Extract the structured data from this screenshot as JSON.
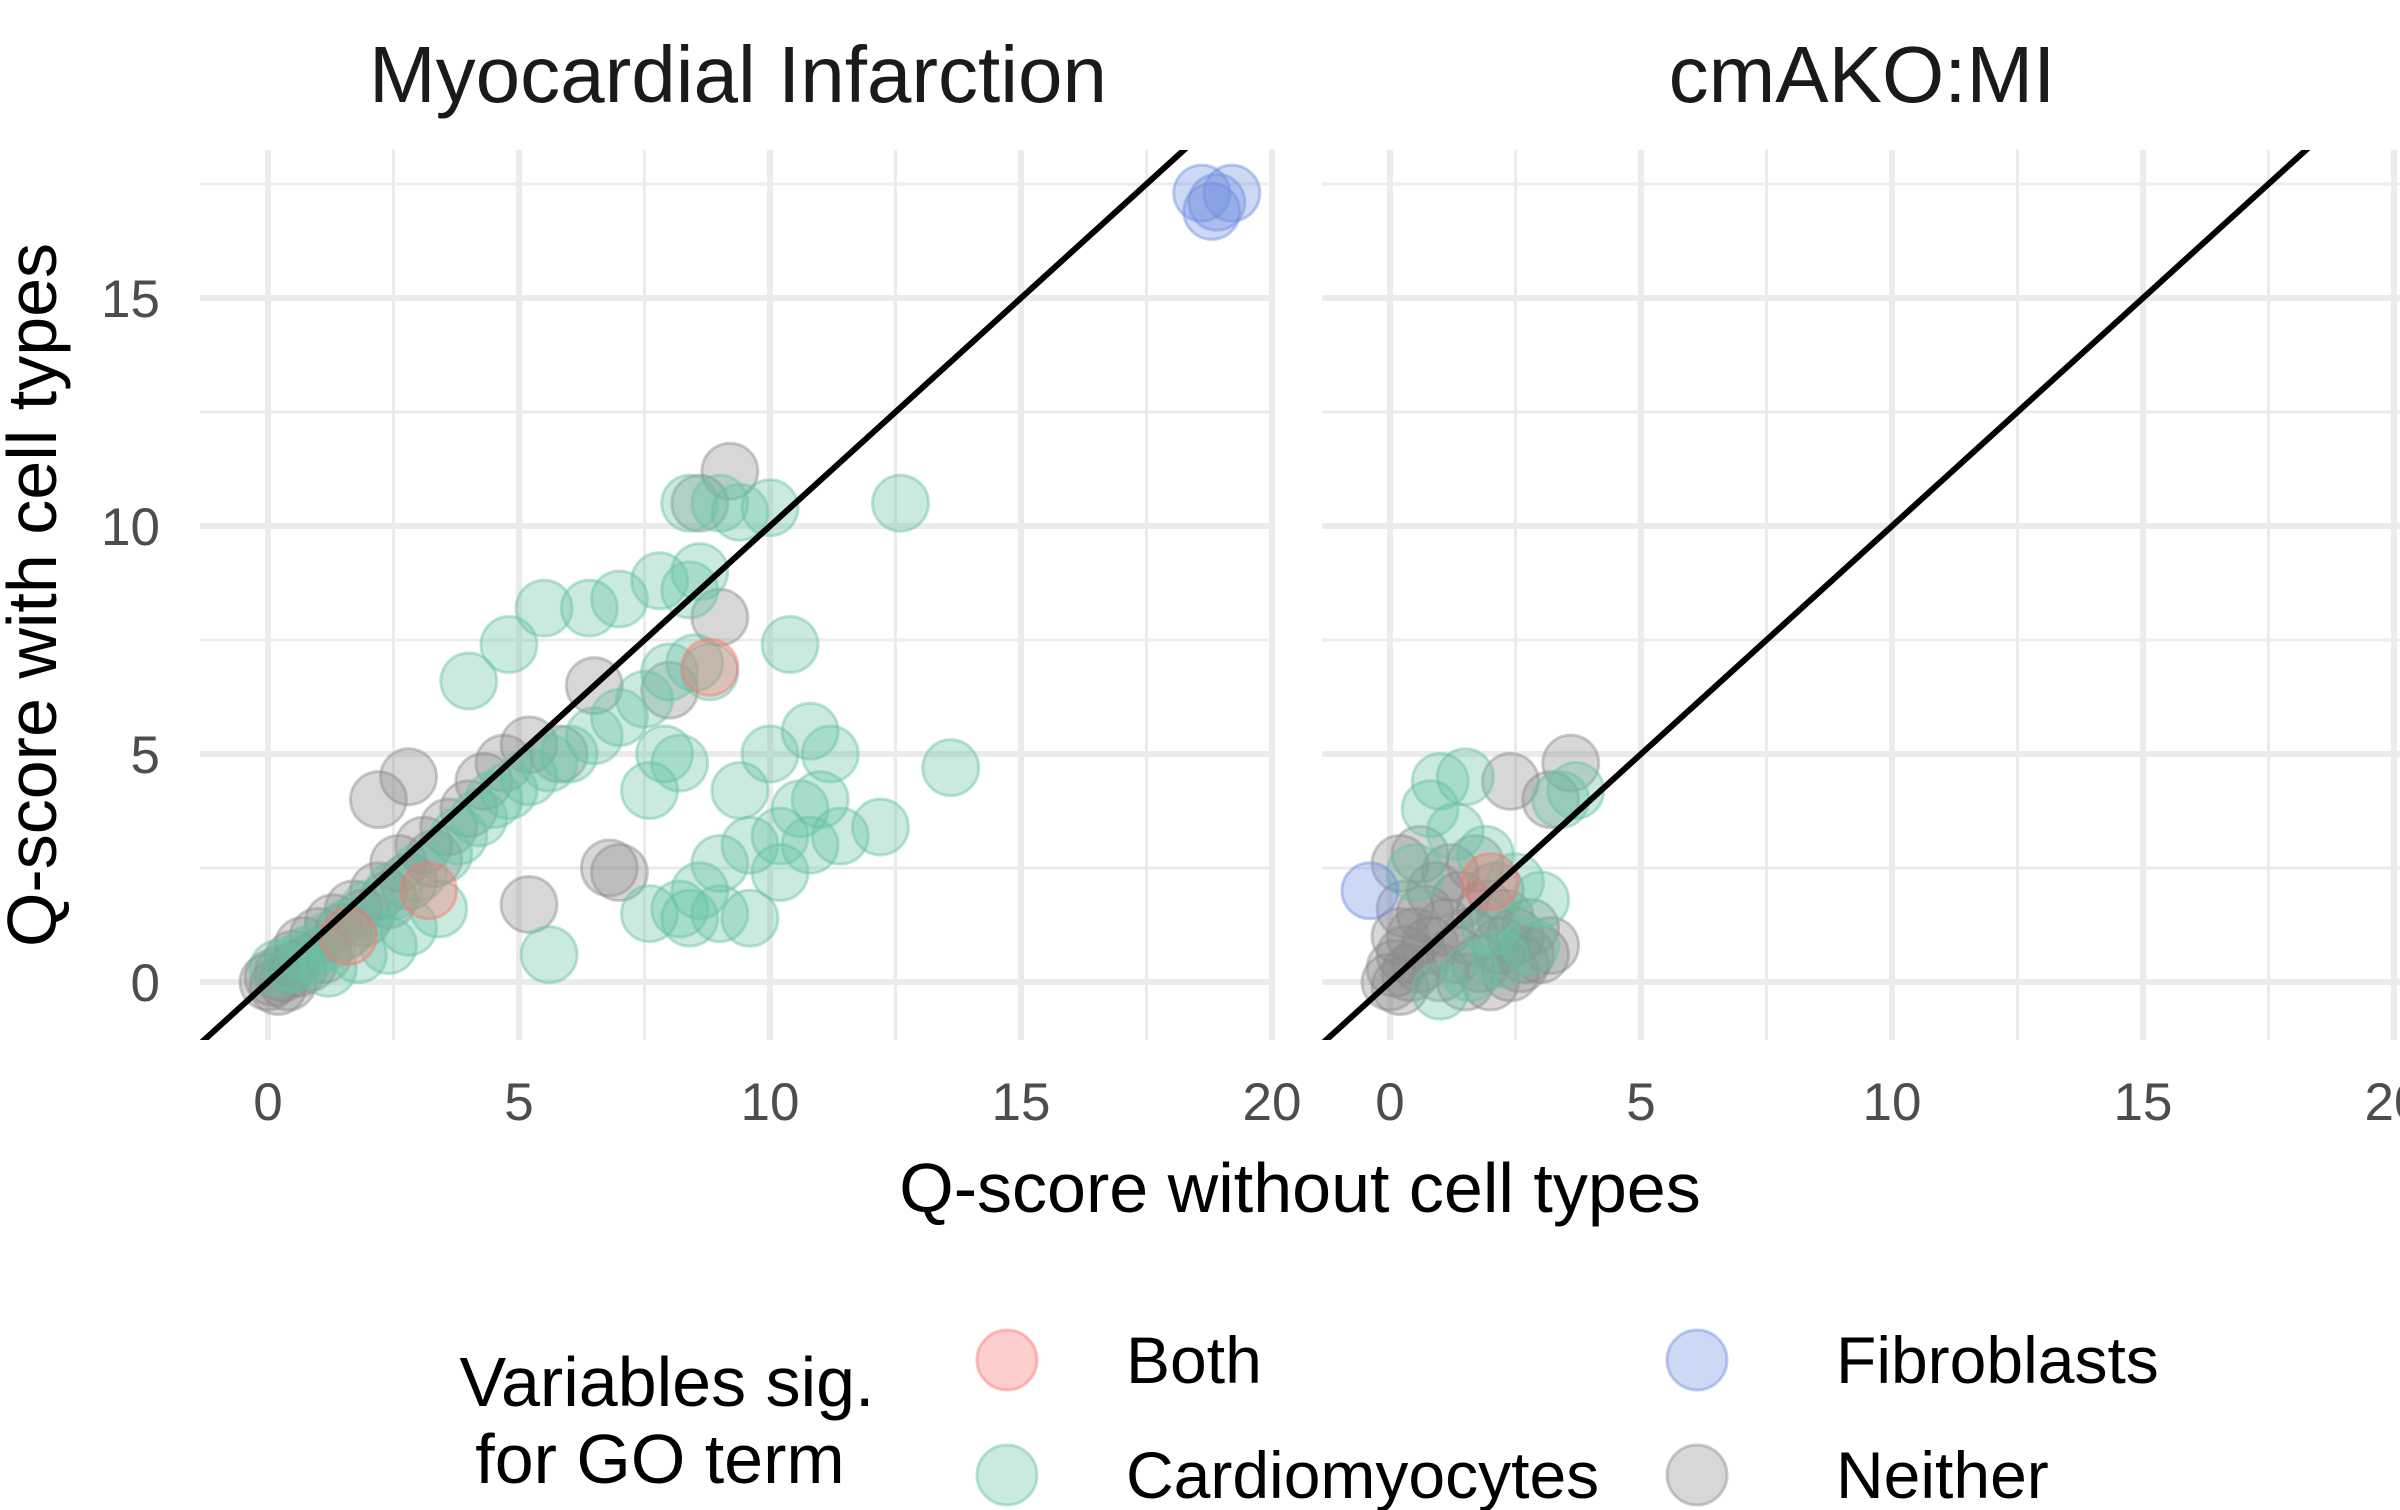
{
  "chart_data": {
    "type": "scatter",
    "xlabel": "Q-score without cell types",
    "ylabel": "Q-score with cell types",
    "xlim": [
      -1.3,
      20
    ],
    "ylim": [
      -1.2,
      18
    ],
    "x_ticks": [
      "0",
      "5",
      "10",
      "15",
      "20"
    ],
    "y_ticks": [
      "0",
      "5",
      "10",
      "15"
    ],
    "x_tick_values": [
      0,
      5,
      10,
      15,
      20
    ],
    "y_tick_values": [
      0,
      5,
      10,
      15
    ],
    "grid": true,
    "reference_line": "y = x",
    "legend": {
      "title_lines": [
        "Variables sig.",
        "for GO term"
      ],
      "placement": "bottom",
      "entries": [
        {
          "label": "Both",
          "color": "#F8766D"
        },
        {
          "label": "Cardiomyocytes",
          "color": "#66C2A5"
        },
        {
          "label": "Fibroblasts",
          "color": "#6F8FE0"
        },
        {
          "label": "Neither",
          "color": "#8C8C8C"
        }
      ]
    },
    "panels": [
      {
        "title": "Myocardial Infarction",
        "series": [
          {
            "name": "Cardiomyocytes",
            "color": "#66C2A5",
            "points": [
              [
                0.2,
                0.3
              ],
              [
                0.5,
                0.4
              ],
              [
                0.8,
                0.6
              ],
              [
                1.2,
                0.9
              ],
              [
                1.6,
                1.2
              ],
              [
                2.0,
                1.6
              ],
              [
                2.5,
                2.0
              ],
              [
                3.0,
                2.4
              ],
              [
                3.5,
                2.8
              ],
              [
                3.8,
                3.2
              ],
              [
                4.2,
                3.6
              ],
              [
                4.5,
                4.0
              ],
              [
                4.8,
                4.2
              ],
              [
                5.2,
                4.5
              ],
              [
                5.6,
                4.8
              ],
              [
                6.0,
                5.0
              ],
              [
                6.5,
                5.4
              ],
              [
                7.0,
                5.8
              ],
              [
                7.5,
                6.2
              ],
              [
                8.0,
                6.8
              ],
              [
                8.5,
                7.0
              ],
              [
                4.0,
                6.6
              ],
              [
                4.8,
                7.4
              ],
              [
                5.5,
                8.2
              ],
              [
                6.4,
                8.2
              ],
              [
                7.0,
                8.4
              ],
              [
                7.8,
                8.8
              ],
              [
                8.4,
                8.6
              ],
              [
                8.6,
                9.0
              ],
              [
                8.4,
                10.5
              ],
              [
                9.0,
                10.5
              ],
              [
                9.4,
                10.3
              ],
              [
                10.0,
                10.4
              ],
              [
                12.6,
                10.5
              ],
              [
                10.4,
                7.4
              ],
              [
                8.8,
                6.8
              ],
              [
                8.2,
                4.8
              ],
              [
                7.6,
                4.2
              ],
              [
                7.9,
                5.0
              ],
              [
                9.4,
                4.2
              ],
              [
                10.0,
                5.0
              ],
              [
                10.8,
                5.5
              ],
              [
                11.2,
                5.0
              ],
              [
                11.0,
                4.0
              ],
              [
                10.6,
                3.8
              ],
              [
                10.2,
                3.2
              ],
              [
                9.6,
                3.0
              ],
              [
                9.0,
                2.6
              ],
              [
                8.6,
                2.0
              ],
              [
                8.2,
                1.6
              ],
              [
                7.6,
                1.5
              ],
              [
                8.4,
                1.4
              ],
              [
                9.0,
                1.5
              ],
              [
                9.6,
                1.4
              ],
              [
                10.2,
                2.4
              ],
              [
                10.8,
                3.0
              ],
              [
                11.4,
                3.2
              ],
              [
                12.2,
                3.4
              ],
              [
                13.6,
                4.7
              ],
              [
                5.6,
                0.6
              ],
              [
                2.4,
                0.8
              ],
              [
                1.8,
                0.6
              ],
              [
                1.2,
                0.3
              ],
              [
                2.8,
                1.2
              ],
              [
                3.4,
                1.6
              ]
            ]
          },
          {
            "name": "Neither",
            "color": "#8C8C8C",
            "points": [
              [
                0.0,
                0.0
              ],
              [
                0.1,
                0.1
              ],
              [
                0.2,
                -0.1
              ],
              [
                0.3,
                0.2
              ],
              [
                0.4,
                0.0
              ],
              [
                0.5,
                0.5
              ],
              [
                0.6,
                0.3
              ],
              [
                0.7,
                0.8
              ],
              [
                0.8,
                0.4
              ],
              [
                1.0,
                1.0
              ],
              [
                1.1,
                0.6
              ],
              [
                1.3,
                1.3
              ],
              [
                1.5,
                1.1
              ],
              [
                1.7,
                1.6
              ],
              [
                1.9,
                1.4
              ],
              [
                2.2,
                2.0
              ],
              [
                2.4,
                1.8
              ],
              [
                2.6,
                2.6
              ],
              [
                2.8,
                2.2
              ],
              [
                3.1,
                3.0
              ],
              [
                3.3,
                2.7
              ],
              [
                3.6,
                3.4
              ],
              [
                4.0,
                3.8
              ],
              [
                4.3,
                4.4
              ],
              [
                4.7,
                4.8
              ],
              [
                5.2,
                5.2
              ],
              [
                5.8,
                5.0
              ],
              [
                6.5,
                6.5
              ],
              [
                8.0,
                6.4
              ],
              [
                8.6,
                10.5
              ],
              [
                9.2,
                11.2
              ],
              [
                9.0,
                8.0
              ],
              [
                6.8,
                2.5
              ],
              [
                7.0,
                2.4
              ],
              [
                5.2,
                1.7
              ],
              [
                2.2,
                4.0
              ],
              [
                2.8,
                4.5
              ]
            ]
          },
          {
            "name": "Both",
            "color": "#F8766D",
            "points": [
              [
                3.2,
                2.0
              ],
              [
                8.8,
                6.9
              ],
              [
                1.6,
                1.0
              ]
            ]
          },
          {
            "name": "Fibroblasts",
            "color": "#6F8FE0",
            "points": [
              [
                18.6,
                17.3
              ],
              [
                18.8,
                16.9
              ],
              [
                19.2,
                17.3
              ],
              [
                18.9,
                17.1
              ]
            ]
          }
        ]
      },
      {
        "title": "cmAKO:MI",
        "series": [
          {
            "name": "Cardiomyocytes",
            "color": "#66C2A5",
            "points": [
              [
                1.0,
                4.4
              ],
              [
                1.5,
                4.5
              ],
              [
                0.8,
                3.8
              ],
              [
                1.3,
                3.3
              ],
              [
                1.9,
                2.8
              ],
              [
                2.5,
                2.2
              ],
              [
                3.0,
                1.8
              ],
              [
                3.4,
                4.0
              ],
              [
                3.7,
                4.2
              ],
              [
                2.2,
                0.5
              ],
              [
                2.8,
                0.8
              ],
              [
                1.6,
                0.2
              ],
              [
                1.0,
                -0.2
              ],
              [
                0.5,
                2.4
              ],
              [
                2.0,
                1.2
              ]
            ]
          },
          {
            "name": "Neither",
            "color": "#8C8C8C",
            "points": [
              [
                0.0,
                0.0
              ],
              [
                0.1,
                0.3
              ],
              [
                0.2,
                -0.1
              ],
              [
                0.3,
                0.6
              ],
              [
                0.4,
                0.2
              ],
              [
                0.5,
                1.0
              ],
              [
                0.6,
                0.4
              ],
              [
                0.7,
                1.5
              ],
              [
                0.8,
                0.8
              ],
              [
                0.9,
                2.0
              ],
              [
                1.0,
                0.2
              ],
              [
                1.1,
                1.2
              ],
              [
                1.2,
                2.4
              ],
              [
                1.3,
                0.6
              ],
              [
                1.4,
                1.8
              ],
              [
                1.5,
                0.0
              ],
              [
                1.6,
                1.0
              ],
              [
                1.7,
                2.6
              ],
              [
                1.8,
                0.4
              ],
              [
                1.9,
                1.6
              ],
              [
                2.0,
                0.0
              ],
              [
                2.1,
                2.0
              ],
              [
                2.2,
                0.8
              ],
              [
                2.3,
                1.4
              ],
              [
                2.4,
                0.2
              ],
              [
                2.5,
                1.0
              ],
              [
                2.6,
                0.4
              ],
              [
                2.7,
                0.6
              ],
              [
                2.8,
                1.2
              ],
              [
                3.0,
                0.6
              ],
              [
                3.2,
                0.8
              ],
              [
                0.3,
                1.6
              ],
              [
                0.2,
                1.0
              ],
              [
                0.6,
                2.8
              ],
              [
                2.4,
                4.4
              ],
              [
                3.6,
                4.8
              ],
              [
                3.2,
                4.0
              ],
              [
                0.2,
                2.6
              ]
            ]
          },
          {
            "name": "Both",
            "color": "#F8766D",
            "points": [
              [
                2.0,
                2.2
              ]
            ]
          },
          {
            "name": "Fibroblasts",
            "color": "#6F8FE0",
            "points": [
              [
                -0.4,
                2.0
              ]
            ]
          }
        ]
      }
    ]
  }
}
